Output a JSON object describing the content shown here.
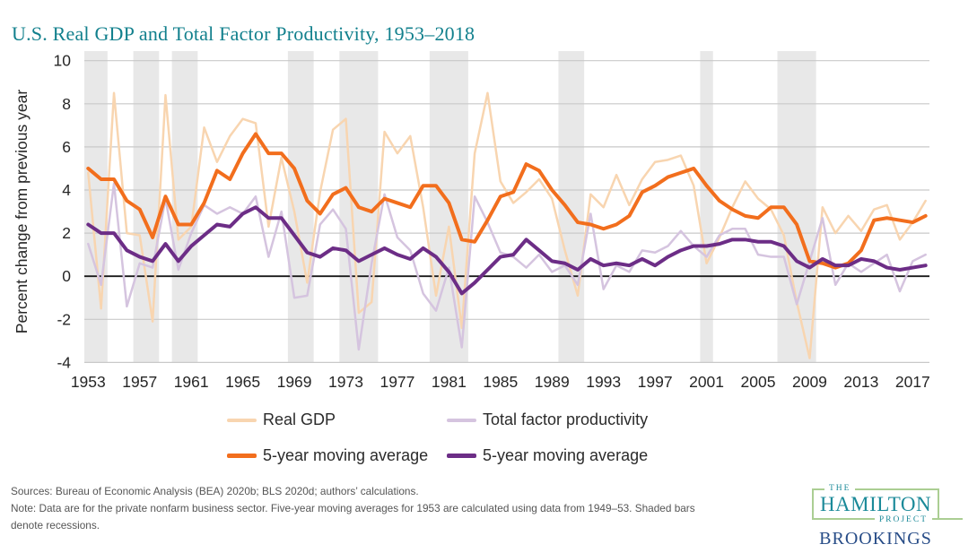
{
  "page": {
    "title": "U.S. Real GDP and Total Factor Productivity, 1953–2018"
  },
  "chart_data": {
    "type": "line",
    "title": "U.S. Real GDP and Total Factor Productivity, 1953–2018",
    "xlabel": "",
    "ylabel": "Percent change from previous year",
    "ylim": [
      -4,
      10
    ],
    "yticks": [
      10,
      8,
      6,
      4,
      2,
      0,
      -2,
      -4
    ],
    "xlim": [
      1952.7,
      2018.3
    ],
    "xticks": [
      1953,
      1957,
      1961,
      1965,
      1969,
      1973,
      1977,
      1981,
      1985,
      1989,
      1993,
      1997,
      2001,
      2005,
      2009,
      2013,
      2017
    ],
    "grid": "horizontal",
    "legend_position": "bottom",
    "years": [
      1953,
      1954,
      1955,
      1956,
      1957,
      1958,
      1959,
      1960,
      1961,
      1962,
      1963,
      1964,
      1965,
      1966,
      1967,
      1968,
      1969,
      1970,
      1971,
      1972,
      1973,
      1974,
      1975,
      1976,
      1977,
      1978,
      1979,
      1980,
      1981,
      1982,
      1983,
      1984,
      1985,
      1986,
      1987,
      1988,
      1989,
      1990,
      1991,
      1992,
      1993,
      1994,
      1995,
      1996,
      1997,
      1998,
      1999,
      2000,
      2001,
      2002,
      2003,
      2004,
      2005,
      2006,
      2007,
      2008,
      2009,
      2010,
      2011,
      2012,
      2013,
      2014,
      2015,
      2016,
      2017,
      2018
    ],
    "series": [
      {
        "name": "Real GDP",
        "role": "annual percent change",
        "color": "#f8d5b0",
        "stroke_width": 2.5,
        "values": [
          4.8,
          -1.5,
          8.5,
          2.0,
          1.9,
          -2.1,
          8.4,
          1.7,
          2.3,
          6.9,
          5.3,
          6.5,
          7.3,
          7.1,
          2.3,
          5.5,
          3.0,
          -0.3,
          3.9,
          6.8,
          7.3,
          -1.7,
          -1.2,
          6.7,
          5.7,
          6.5,
          3.2,
          -0.9,
          2.3,
          -2.4,
          5.7,
          8.5,
          4.4,
          3.4,
          3.9,
          4.5,
          3.6,
          1.2,
          -0.9,
          3.8,
          3.2,
          4.7,
          3.3,
          4.5,
          5.3,
          5.4,
          5.6,
          4.2,
          0.6,
          1.8,
          3.2,
          4.4,
          3.6,
          3.1,
          1.9,
          -1.2,
          -3.8,
          3.2,
          2.0,
          2.8,
          2.1,
          3.1,
          3.3,
          1.7,
          2.5,
          3.5
        ]
      },
      {
        "name": "Total factor productivity",
        "role": "annual percent change",
        "color": "#d5c4df",
        "stroke_width": 2.5,
        "values": [
          1.5,
          -0.4,
          4.3,
          -1.4,
          0.6,
          0.4,
          3.6,
          0.3,
          2.0,
          3.3,
          2.9,
          3.2,
          2.9,
          3.7,
          0.9,
          3.0,
          -1.0,
          -0.9,
          2.4,
          3.1,
          2.2,
          -3.4,
          0.6,
          3.8,
          1.8,
          1.2,
          -0.8,
          -1.6,
          0.4,
          -3.3,
          3.7,
          2.5,
          1.1,
          0.9,
          0.4,
          1.0,
          0.2,
          0.5,
          -0.4,
          2.9,
          -0.6,
          0.5,
          0.2,
          1.2,
          1.1,
          1.4,
          2.1,
          1.4,
          0.9,
          1.9,
          2.2,
          2.2,
          1.0,
          0.9,
          0.9,
          -1.3,
          0.7,
          2.7,
          -0.4,
          0.6,
          0.2,
          0.6,
          1.0,
          -0.7,
          0.7,
          1.0
        ]
      },
      {
        "name": "5-year moving average",
        "role": "5-year moving average of Real GDP (1953 value uses 1949–53 data)",
        "color": "#f26e1d",
        "stroke_width": 4,
        "values": [
          5.0,
          4.5,
          4.5,
          3.5,
          3.1,
          1.8,
          3.7,
          2.4,
          2.4,
          3.4,
          4.9,
          4.5,
          5.7,
          6.6,
          5.7,
          5.7,
          5.0,
          3.5,
          2.9,
          3.8,
          4.1,
          3.2,
          3.0,
          3.6,
          3.4,
          3.2,
          4.2,
          4.2,
          3.4,
          1.7,
          1.6,
          2.6,
          3.7,
          3.9,
          5.2,
          4.9,
          4.0,
          3.3,
          2.5,
          2.4,
          2.2,
          2.4,
          2.8,
          3.9,
          4.2,
          4.6,
          4.8,
          5.0,
          4.2,
          3.5,
          3.1,
          2.8,
          2.7,
          3.2,
          3.2,
          2.4,
          0.7,
          0.6,
          0.4,
          0.6,
          1.2,
          2.6,
          2.7,
          2.6,
          2.5,
          2.8
        ]
      },
      {
        "name": "5-year moving average",
        "role": "5-year moving average of Total factor productivity (1953 value uses 1949–53 data)",
        "color": "#6c2d86",
        "stroke_width": 4,
        "values": [
          2.4,
          2.0,
          2.0,
          1.2,
          0.9,
          0.7,
          1.5,
          0.7,
          1.4,
          1.9,
          2.4,
          2.3,
          2.9,
          3.2,
          2.7,
          2.7,
          1.9,
          1.1,
          0.9,
          1.3,
          1.2,
          0.7,
          1.0,
          1.3,
          1.0,
          0.8,
          1.3,
          0.9,
          0.2,
          -0.8,
          -0.3,
          0.3,
          0.9,
          1.0,
          1.7,
          1.2,
          0.7,
          0.6,
          0.3,
          0.8,
          0.5,
          0.6,
          0.5,
          0.8,
          0.5,
          0.9,
          1.2,
          1.4,
          1.4,
          1.5,
          1.7,
          1.7,
          1.6,
          1.6,
          1.4,
          0.7,
          0.4,
          0.8,
          0.5,
          0.5,
          0.8,
          0.7,
          0.4,
          0.3,
          0.4,
          0.5
        ]
      }
    ],
    "recession_bands": [
      [
        1952.5,
        1954.5
      ],
      [
        1956.5,
        1958.5
      ],
      [
        1959.5,
        1961.5
      ],
      [
        1968.5,
        1970.5
      ],
      [
        1972.5,
        1975.5
      ],
      [
        1979.5,
        1982.5
      ],
      [
        1989.5,
        1991.5
      ],
      [
        2000.5,
        2001.5
      ],
      [
        2006.5,
        2009.5
      ]
    ],
    "recession_color": "#e8e8e8",
    "annotation": "Shaded bars denote recessions"
  },
  "legend": {
    "items": [
      {
        "label": "Real GDP",
        "series_index": 0,
        "thick": false
      },
      {
        "label": "Total factor productivity",
        "series_index": 1,
        "thick": false
      },
      {
        "label": "5-year moving average",
        "series_index": 2,
        "thick": true
      },
      {
        "label": "5-year moving average",
        "series_index": 3,
        "thick": true
      }
    ]
  },
  "footer": {
    "sources": "Sources: Bureau of Economic Analysis (BEA) 2020b; BLS 2020d; authors’ calculations.",
    "note": "Note: Data are for the private nonfarm business sector. Five-year moving averages for 1953 are calculated using data from 1949–53. Shaded bars denote recessions."
  },
  "logo": {
    "the": "THE",
    "hamilton": "HAMILTON",
    "project": "PROJECT",
    "brookings": "BROOKINGS"
  },
  "colors": {
    "title_teal": "#12808d",
    "axis_text": "#262626",
    "grid": "#c9c9c9",
    "zero_line": "#1a1a1a",
    "recession_band": "#e8e8e8",
    "footer_text": "#555555",
    "logo_teal": "#1b8a99",
    "logo_green_border": "#abce93",
    "brookings_blue": "#274c87"
  }
}
